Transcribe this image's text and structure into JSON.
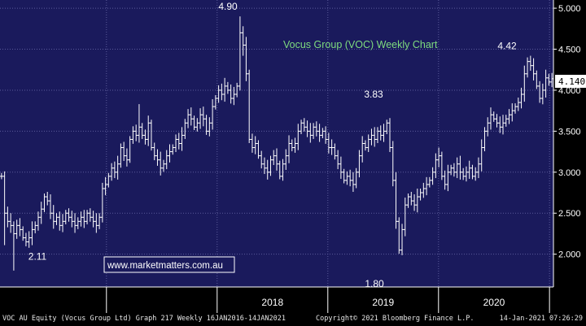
{
  "chart_data": {
    "type": "ohlc",
    "title": "Vocus Group (VOC) Weekly Chart",
    "watermark": "www.marketmatters.com.au",
    "ylim": [
      1.6,
      5.1
    ],
    "yticks": [
      "5.000",
      "4.500",
      "4.000",
      "3.500",
      "3.000",
      "2.500",
      "2.000"
    ],
    "xticks": [
      "2018",
      "2019",
      "2020"
    ],
    "last_price": "4.140",
    "annotations": [
      {
        "label": "4.90",
        "value": 4.9
      },
      {
        "label": "2.11",
        "value": 2.11
      },
      {
        "label": "3.83",
        "value": 3.83
      },
      {
        "label": "1.80",
        "value": 1.8
      },
      {
        "label": "4.42",
        "value": 4.42
      }
    ],
    "series": [
      {
        "start": "2016-01-16",
        "end": "2021-01-14",
        "frequency": "weekly",
        "close": [
          2.95,
          2.5,
          2.4,
          2.35,
          2.25,
          2.35,
          2.3,
          2.2,
          2.15,
          2.2,
          2.3,
          2.35,
          2.45,
          2.55,
          2.7,
          2.65,
          2.5,
          2.4,
          2.45,
          2.35,
          2.4,
          2.5,
          2.45,
          2.4,
          2.35,
          2.4,
          2.45,
          2.4,
          2.5,
          2.45,
          2.4,
          2.35,
          2.45,
          2.8,
          2.85,
          2.95,
          3.05,
          3.0,
          3.1,
          3.3,
          3.2,
          3.15,
          3.4,
          3.5,
          3.45,
          3.55,
          3.45,
          3.4,
          3.6,
          3.3,
          3.2,
          3.15,
          3.05,
          3.1,
          3.2,
          3.25,
          3.3,
          3.4,
          3.35,
          3.45,
          3.6,
          3.7,
          3.65,
          3.55,
          3.6,
          3.7,
          3.65,
          3.5,
          3.6,
          3.8,
          3.9,
          4.0,
          3.95,
          4.05,
          4.0,
          3.9,
          3.95,
          4.05,
          4.7,
          4.55,
          4.2,
          3.4,
          3.3,
          3.35,
          3.2,
          3.1,
          3.05,
          3.0,
          3.15,
          3.2,
          3.1,
          2.95,
          3.1,
          3.2,
          3.35,
          3.3,
          3.35,
          3.5,
          3.6,
          3.55,
          3.5,
          3.45,
          3.55,
          3.5,
          3.45,
          3.5,
          3.4,
          3.3,
          3.3,
          3.2,
          3.1,
          3.0,
          2.9,
          2.95,
          2.9,
          2.85,
          3.0,
          3.2,
          3.35,
          3.3,
          3.4,
          3.45,
          3.4,
          3.5,
          3.45,
          3.5,
          3.6,
          3.3,
          2.9,
          2.4,
          2.05,
          2.3,
          2.6,
          2.7,
          2.65,
          2.6,
          2.7,
          2.75,
          2.8,
          2.85,
          2.9,
          3.0,
          3.15,
          3.2,
          2.95,
          2.85,
          3.0,
          3.05,
          3.0,
          3.1,
          3.0,
          2.95,
          3.0,
          3.05,
          2.95,
          3.0,
          3.1,
          3.3,
          3.5,
          3.6,
          3.7,
          3.65,
          3.6,
          3.55,
          3.6,
          3.65,
          3.7,
          3.75,
          3.8,
          3.85,
          3.95,
          4.2,
          4.35,
          4.3,
          4.2,
          4.05,
          3.9,
          4.0,
          4.15,
          4.1,
          4.14
        ]
      }
    ]
  },
  "footer": {
    "left": "VOC AU Equity (Vocus Group Ltd) Graph 217  Weekly 16JAN2016-14JAN2021",
    "center": "Copyright© 2021 Bloomberg Finance L.P.",
    "right": "14-Jan-2021 07:26:29"
  },
  "colors": {
    "background": "#1a1a5c",
    "grid": "#5a5a9a",
    "bars": "#ffffff",
    "title": "#7fdc7f",
    "watermark": "#ffffff",
    "last_price_box": "#ffffff"
  }
}
